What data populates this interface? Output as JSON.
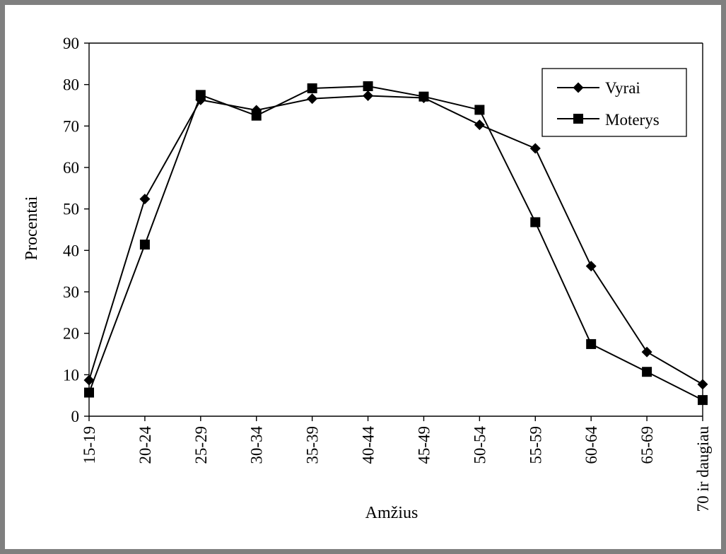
{
  "chart_data": {
    "type": "line",
    "title": "",
    "xlabel": "Amžius",
    "ylabel": "Procentai",
    "ylim": [
      0,
      90
    ],
    "yticks": [
      "0",
      "10",
      "20",
      "30",
      "40",
      "50",
      "60",
      "70",
      "80",
      "90"
    ],
    "categories": [
      "15-19",
      "20-24",
      "25-29",
      "30-34",
      "35-39",
      "40-44",
      "45-49",
      "50-54",
      "55-59",
      "60-64",
      "65-69",
      "70 ir daugiau"
    ],
    "series": [
      {
        "name": "Vyrai",
        "marker": "diamond",
        "values": [
          8.7,
          52.4,
          76.3,
          73.8,
          76.6,
          77.3,
          76.8,
          70.3,
          64.6,
          36.2,
          15.5,
          7.7
        ]
      },
      {
        "name": "Moterys",
        "marker": "square",
        "values": [
          5.7,
          41.4,
          77.5,
          72.5,
          79.1,
          79.6,
          77.1,
          73.9,
          46.8,
          17.4,
          10.7,
          3.9
        ]
      }
    ],
    "grid": false,
    "legend_position": "top-right",
    "colors": {
      "line": "#000000",
      "frame": "#7f7f7f",
      "background": "#ffffff"
    }
  }
}
